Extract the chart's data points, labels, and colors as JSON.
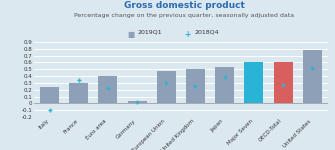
{
  "title": "Gross domestic product",
  "subtitle": "Percentage change on the previous quarter, seasonally adjusted data",
  "categories": [
    "Italy",
    "France",
    "Euro area",
    "Germany",
    "European Union",
    "United Kingdom",
    "Japan",
    "Major Seven",
    "OECD-Total",
    "United States"
  ],
  "bar_values_2019Q1": [
    0.24,
    0.3,
    0.4,
    0.04,
    0.47,
    0.5,
    0.53,
    0.6,
    0.6,
    0.78
  ],
  "bar_values_2018Q4": [
    -0.1,
    0.35,
    0.23,
    0.02,
    0.3,
    0.25,
    0.38,
    0.35,
    0.27,
    0.52
  ],
  "bar_colors": [
    "#8da0b8",
    "#8da0b8",
    "#8da0b8",
    "#8da0b8",
    "#8da0b8",
    "#8da0b8",
    "#8da0b8",
    "#29b4d6",
    "#d95f5f",
    "#8da0b8"
  ],
  "marker_color": "#29b4d6",
  "legend_2019Q1": "2019Q1",
  "legend_2018Q4": "2018Q4",
  "ylim": [
    -0.2,
    0.9
  ],
  "yticks": [
    -0.2,
    -0.1,
    0.0,
    0.1,
    0.2,
    0.3,
    0.4,
    0.5,
    0.6,
    0.7,
    0.8,
    0.9
  ],
  "background_color": "#dce8f0",
  "plot_bg_color": "#dce8f0",
  "title_color": "#2b6cb0",
  "subtitle_color": "#555555",
  "title_fontsize": 6.5,
  "subtitle_fontsize": 4.5,
  "legend_fontsize": 4.5,
  "tick_fontsize": 4.0,
  "xlabel_fontsize": 4.0
}
